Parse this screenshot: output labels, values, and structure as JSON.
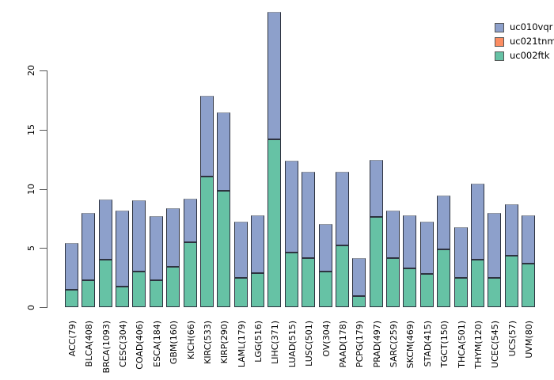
{
  "chart_data": {
    "type": "bar",
    "stacked": true,
    "title": "",
    "xlabel": "",
    "ylabel": "",
    "ylim": [
      0,
      25
    ],
    "yticks": [
      0,
      5,
      10,
      15,
      20
    ],
    "grid": false,
    "legend_position": "top-right",
    "categories": [
      "ACC(79)",
      "BLCA(408)",
      "BRCA(1093)",
      "CESC(304)",
      "COAD(406)",
      "ESCA(184)",
      "GBM(160)",
      "KICH(66)",
      "KIRC(533)",
      "KIRP(290)",
      "LAML(179)",
      "LGG(516)",
      "LIHC(371)",
      "LUAD(515)",
      "LUSC(501)",
      "OV(304)",
      "PAAD(178)",
      "PCPG(179)",
      "PRAD(497)",
      "SARC(259)",
      "SKCM(469)",
      "STAD(415)",
      "TGCT(150)",
      "THCA(501)",
      "THYM(120)",
      "UCEC(545)",
      "UCS(57)",
      "UVM(80)"
    ],
    "series": [
      {
        "name": "uc002ftk",
        "color": "#66c2a5",
        "values": [
          1.5,
          2.25,
          4.0,
          1.75,
          3.0,
          2.25,
          3.4,
          5.5,
          11.05,
          9.8,
          2.45,
          2.85,
          14.15,
          4.6,
          4.15,
          3.0,
          5.2,
          0.95,
          7.6,
          4.15,
          3.3,
          2.8,
          4.85,
          2.5,
          4.0,
          2.5,
          4.35,
          3.65
        ]
      },
      {
        "name": "uc021tnm",
        "color": "#fc8d62",
        "values": [
          0,
          0,
          0,
          0,
          0,
          0,
          0,
          0,
          0,
          0,
          0,
          0,
          0,
          0,
          0,
          0,
          0,
          0,
          0,
          0,
          0,
          0,
          0,
          0,
          0,
          0,
          0,
          0
        ]
      },
      {
        "name": "uc010vqr",
        "color": "#8da0cb",
        "values": [
          3.95,
          5.7,
          5.1,
          6.4,
          6.05,
          5.4,
          4.95,
          3.65,
          6.85,
          6.6,
          4.75,
          4.85,
          10.75,
          7.75,
          7.3,
          4.0,
          6.2,
          3.2,
          4.8,
          4.0,
          4.5,
          4.4,
          4.55,
          4.3,
          6.4,
          5.5,
          4.35,
          4.1
        ]
      }
    ],
    "legend": [
      {
        "label": "uc010vqr",
        "color": "#8da0cb"
      },
      {
        "label": "uc021tnm",
        "color": "#fc8d62"
      },
      {
        "label": "uc002ftk",
        "color": "#66c2a5"
      }
    ]
  },
  "colors": {
    "background": "#ffffff",
    "axis": "#555555",
    "text": "#000000",
    "bar_border": "#2e3340",
    "bar_top_cap": "#9298a3"
  }
}
